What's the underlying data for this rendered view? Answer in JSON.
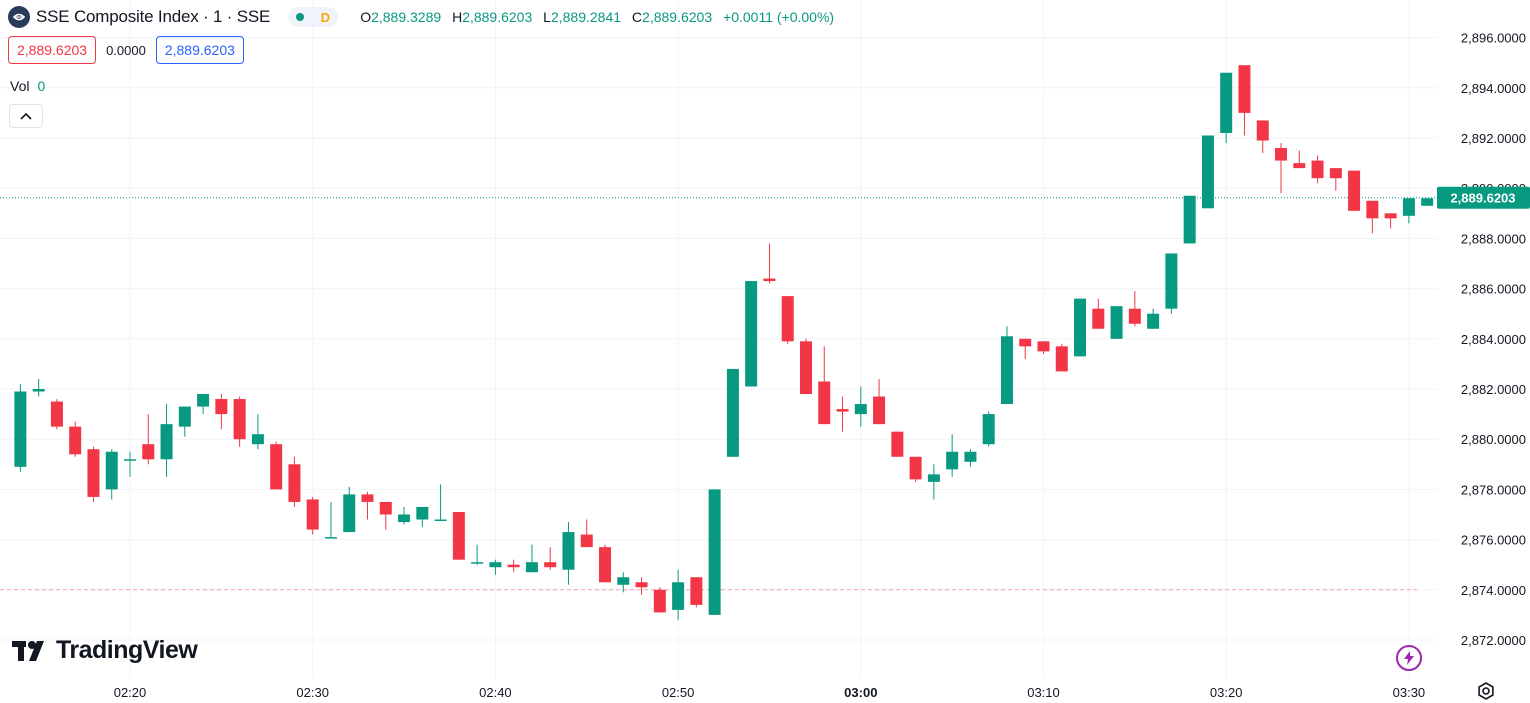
{
  "header": {
    "symbol": "SSE Composite Index · 1 · SSE",
    "status_letter": "D",
    "open_key": "O",
    "open": "2,889.3289",
    "high_key": "H",
    "high": "2,889.6203",
    "low_key": "L",
    "low": "2,889.2841",
    "close_key": "C",
    "close": "2,889.6203",
    "change": "+0.0011 (+0.00%)"
  },
  "trade": {
    "sell": "2,889.6203",
    "spread": "0.0000",
    "buy": "2,889.6203"
  },
  "volume": {
    "label": "Vol",
    "value": "0"
  },
  "branding": {
    "name": "TradingView"
  },
  "colors": {
    "up": "#089981",
    "down": "#f23645",
    "grid": "#f0f3fa",
    "text": "#131722",
    "bolt": "#9c27b0"
  },
  "icons": [
    "exchange-logo-icon",
    "market-status-dot-icon",
    "chevron-up-icon",
    "tradingview-logo-icon",
    "lightning-icon",
    "settings-icon"
  ],
  "chart_data": {
    "type": "candlestick",
    "title": "SSE Composite Index · 1 · SSE",
    "ylim": [
      2871.0,
      2897.0
    ],
    "y_ticks": [
      "2,872.0000",
      "2,874.0000",
      "2,876.0000",
      "2,878.0000",
      "2,880.0000",
      "2,882.0000",
      "2,884.0000",
      "2,886.0000",
      "2,888.0000",
      "2,890.0000",
      "2,892.0000",
      "2,894.0000",
      "2,896.0000"
    ],
    "x_ticks": [
      "02:20",
      "02:30",
      "02:40",
      "02:50",
      "03:00",
      "03:10",
      "03:20",
      "03:30"
    ],
    "x_ticks_bold": [
      "03:00"
    ],
    "time_range": [
      "02:14",
      "03:30"
    ],
    "last_price": "2,889.6203",
    "last_price_value": 2889.6203,
    "reference_line": 2874.0,
    "candles": [
      {
        "t": "02:14",
        "o": 2878.9,
        "h": 2882.2,
        "l": 2878.7,
        "c": 2881.9
      },
      {
        "t": "02:15",
        "o": 2881.9,
        "h": 2882.4,
        "l": 2881.7,
        "c": 2882.0
      },
      {
        "t": "02:16",
        "o": 2881.5,
        "h": 2881.6,
        "l": 2880.4,
        "c": 2880.5
      },
      {
        "t": "02:17",
        "o": 2880.5,
        "h": 2880.7,
        "l": 2879.3,
        "c": 2879.4
      },
      {
        "t": "02:18",
        "o": 2879.6,
        "h": 2879.7,
        "l": 2877.5,
        "c": 2877.7
      },
      {
        "t": "02:19",
        "o": 2878.0,
        "h": 2879.6,
        "l": 2877.6,
        "c": 2879.5
      },
      {
        "t": "02:20",
        "o": 2879.2,
        "h": 2879.5,
        "l": 2878.5,
        "c": 2879.2
      },
      {
        "t": "02:21",
        "o": 2879.8,
        "h": 2881.0,
        "l": 2879.0,
        "c": 2879.2
      },
      {
        "t": "02:22",
        "o": 2879.2,
        "h": 2881.4,
        "l": 2878.5,
        "c": 2880.6
      },
      {
        "t": "02:23",
        "o": 2880.5,
        "h": 2881.3,
        "l": 2880.1,
        "c": 2881.3
      },
      {
        "t": "02:24",
        "o": 2881.3,
        "h": 2881.8,
        "l": 2881.0,
        "c": 2881.8
      },
      {
        "t": "02:25",
        "o": 2881.6,
        "h": 2881.8,
        "l": 2880.4,
        "c": 2881.0
      },
      {
        "t": "02:26",
        "o": 2881.6,
        "h": 2881.7,
        "l": 2879.7,
        "c": 2880.0
      },
      {
        "t": "02:27",
        "o": 2879.8,
        "h": 2881.0,
        "l": 2879.6,
        "c": 2880.2
      },
      {
        "t": "02:28",
        "o": 2879.8,
        "h": 2879.9,
        "l": 2878.0,
        "c": 2878.0
      },
      {
        "t": "02:29",
        "o": 2879.0,
        "h": 2879.3,
        "l": 2877.3,
        "c": 2877.5
      },
      {
        "t": "02:30",
        "o": 2877.6,
        "h": 2877.7,
        "l": 2876.2,
        "c": 2876.4
      },
      {
        "t": "02:31",
        "o": 2876.1,
        "h": 2877.5,
        "l": 2876.1,
        "c": 2876.1
      },
      {
        "t": "02:32",
        "o": 2876.3,
        "h": 2878.1,
        "l": 2876.3,
        "c": 2877.8
      },
      {
        "t": "02:33",
        "o": 2877.8,
        "h": 2877.9,
        "l": 2876.8,
        "c": 2877.5
      },
      {
        "t": "02:34",
        "o": 2877.5,
        "h": 2877.5,
        "l": 2876.4,
        "c": 2877.0
      },
      {
        "t": "02:35",
        "o": 2876.7,
        "h": 2877.3,
        "l": 2876.6,
        "c": 2877.0
      },
      {
        "t": "02:36",
        "o": 2876.8,
        "h": 2877.3,
        "l": 2876.5,
        "c": 2877.3
      },
      {
        "t": "02:37",
        "o": 2876.8,
        "h": 2878.2,
        "l": 2876.8,
        "c": 2876.8
      },
      {
        "t": "02:38",
        "o": 2877.1,
        "h": 2877.1,
        "l": 2875.2,
        "c": 2875.2
      },
      {
        "t": "02:39",
        "o": 2875.1,
        "h": 2875.8,
        "l": 2875.0,
        "c": 2875.1
      },
      {
        "t": "02:40",
        "o": 2874.9,
        "h": 2875.2,
        "l": 2874.6,
        "c": 2875.1
      },
      {
        "t": "02:41",
        "o": 2875.0,
        "h": 2875.2,
        "l": 2874.7,
        "c": 2874.9
      },
      {
        "t": "02:42",
        "o": 2874.7,
        "h": 2875.8,
        "l": 2874.7,
        "c": 2875.1
      },
      {
        "t": "02:43",
        "o": 2875.1,
        "h": 2875.7,
        "l": 2874.8,
        "c": 2874.9
      },
      {
        "t": "02:44",
        "o": 2874.8,
        "h": 2876.7,
        "l": 2874.2,
        "c": 2876.3
      },
      {
        "t": "02:45",
        "o": 2876.2,
        "h": 2876.8,
        "l": 2875.7,
        "c": 2875.7
      },
      {
        "t": "02:46",
        "o": 2875.7,
        "h": 2875.8,
        "l": 2874.3,
        "c": 2874.3
      },
      {
        "t": "02:47",
        "o": 2874.2,
        "h": 2874.7,
        "l": 2873.9,
        "c": 2874.5
      },
      {
        "t": "02:48",
        "o": 2874.3,
        "h": 2874.5,
        "l": 2873.8,
        "c": 2874.1
      },
      {
        "t": "02:49",
        "o": 2874.0,
        "h": 2874.1,
        "l": 2873.1,
        "c": 2873.1
      },
      {
        "t": "02:50",
        "o": 2873.2,
        "h": 2874.8,
        "l": 2872.8,
        "c": 2874.3
      },
      {
        "t": "02:51",
        "o": 2874.5,
        "h": 2874.5,
        "l": 2873.3,
        "c": 2873.4
      },
      {
        "t": "02:52",
        "o": 2873.0,
        "h": 2878.0,
        "l": 2873.0,
        "c": 2878.0
      },
      {
        "t": "02:53",
        "o": 2879.3,
        "h": 2882.8,
        "l": 2879.3,
        "c": 2882.8
      },
      {
        "t": "02:54",
        "o": 2882.1,
        "h": 2886.3,
        "l": 2882.1,
        "c": 2886.3
      },
      {
        "t": "02:55",
        "o": 2886.4,
        "h": 2887.8,
        "l": 2886.2,
        "c": 2886.3
      },
      {
        "t": "02:56",
        "o": 2885.7,
        "h": 2885.7,
        "l": 2883.8,
        "c": 2883.9
      },
      {
        "t": "02:57",
        "o": 2883.9,
        "h": 2884.0,
        "l": 2881.8,
        "c": 2881.8
      },
      {
        "t": "02:58",
        "o": 2882.3,
        "h": 2883.7,
        "l": 2880.6,
        "c": 2880.6
      },
      {
        "t": "02:59",
        "o": 2881.2,
        "h": 2881.7,
        "l": 2880.3,
        "c": 2881.1
      },
      {
        "t": "03:00",
        "o": 2881.0,
        "h": 2882.1,
        "l": 2880.5,
        "c": 2881.4
      },
      {
        "t": "03:01",
        "o": 2881.7,
        "h": 2882.4,
        "l": 2880.6,
        "c": 2880.6
      },
      {
        "t": "03:02",
        "o": 2880.3,
        "h": 2880.3,
        "l": 2879.3,
        "c": 2879.3
      },
      {
        "t": "03:03",
        "o": 2879.3,
        "h": 2879.3,
        "l": 2878.3,
        "c": 2878.4
      },
      {
        "t": "03:04",
        "o": 2878.3,
        "h": 2879.0,
        "l": 2877.6,
        "c": 2878.6
      },
      {
        "t": "03:05",
        "o": 2878.8,
        "h": 2880.2,
        "l": 2878.5,
        "c": 2879.5
      },
      {
        "t": "03:06",
        "o": 2879.1,
        "h": 2879.6,
        "l": 2878.9,
        "c": 2879.5
      },
      {
        "t": "03:07",
        "o": 2879.8,
        "h": 2881.1,
        "l": 2879.7,
        "c": 2881.0
      },
      {
        "t": "03:08",
        "o": 2881.4,
        "h": 2884.5,
        "l": 2881.4,
        "c": 2884.1
      },
      {
        "t": "03:09",
        "o": 2884.0,
        "h": 2884.0,
        "l": 2883.2,
        "c": 2883.7
      },
      {
        "t": "03:10",
        "o": 2883.9,
        "h": 2883.9,
        "l": 2883.4,
        "c": 2883.5
      },
      {
        "t": "03:11",
        "o": 2883.7,
        "h": 2883.8,
        "l": 2882.7,
        "c": 2882.7
      },
      {
        "t": "03:12",
        "o": 2883.3,
        "h": 2885.6,
        "l": 2883.3,
        "c": 2885.6
      },
      {
        "t": "03:13",
        "o": 2885.2,
        "h": 2885.6,
        "l": 2884.4,
        "c": 2884.4
      },
      {
        "t": "03:14",
        "o": 2884.0,
        "h": 2885.3,
        "l": 2884.0,
        "c": 2885.3
      },
      {
        "t": "03:15",
        "o": 2885.2,
        "h": 2885.9,
        "l": 2884.5,
        "c": 2884.6
      },
      {
        "t": "03:16",
        "o": 2884.4,
        "h": 2885.2,
        "l": 2884.4,
        "c": 2885.0
      },
      {
        "t": "03:17",
        "o": 2885.2,
        "h": 2887.4,
        "l": 2885.0,
        "c": 2887.4
      },
      {
        "t": "03:18",
        "o": 2887.8,
        "h": 2889.7,
        "l": 2887.8,
        "c": 2889.7
      },
      {
        "t": "03:19",
        "o": 2889.2,
        "h": 2892.1,
        "l": 2889.2,
        "c": 2892.1
      },
      {
        "t": "03:20",
        "o": 2892.2,
        "h": 2894.6,
        "l": 2891.8,
        "c": 2894.6
      },
      {
        "t": "03:21",
        "o": 2894.9,
        "h": 2894.9,
        "l": 2892.1,
        "c": 2893.0
      },
      {
        "t": "03:22",
        "o": 2892.7,
        "h": 2892.7,
        "l": 2891.4,
        "c": 2891.9
      },
      {
        "t": "03:23",
        "o": 2891.6,
        "h": 2891.8,
        "l": 2889.8,
        "c": 2891.1
      },
      {
        "t": "03:24",
        "o": 2891.0,
        "h": 2891.5,
        "l": 2890.8,
        "c": 2890.8
      },
      {
        "t": "03:25",
        "o": 2891.1,
        "h": 2891.3,
        "l": 2890.2,
        "c": 2890.4
      },
      {
        "t": "03:26",
        "o": 2890.8,
        "h": 2890.8,
        "l": 2889.9,
        "c": 2890.4
      },
      {
        "t": "03:27",
        "o": 2890.7,
        "h": 2890.7,
        "l": 2889.1,
        "c": 2889.1
      },
      {
        "t": "03:28",
        "o": 2889.5,
        "h": 2889.5,
        "l": 2888.2,
        "c": 2888.8
      },
      {
        "t": "03:29",
        "o": 2889.0,
        "h": 2889.0,
        "l": 2888.4,
        "c": 2888.8
      },
      {
        "t": "03:30",
        "o": 2888.9,
        "h": 2889.6,
        "l": 2888.6,
        "c": 2889.6
      },
      {
        "t": "03:31",
        "o": 2889.3,
        "h": 2889.6,
        "l": 2889.3,
        "c": 2889.6
      }
    ]
  }
}
